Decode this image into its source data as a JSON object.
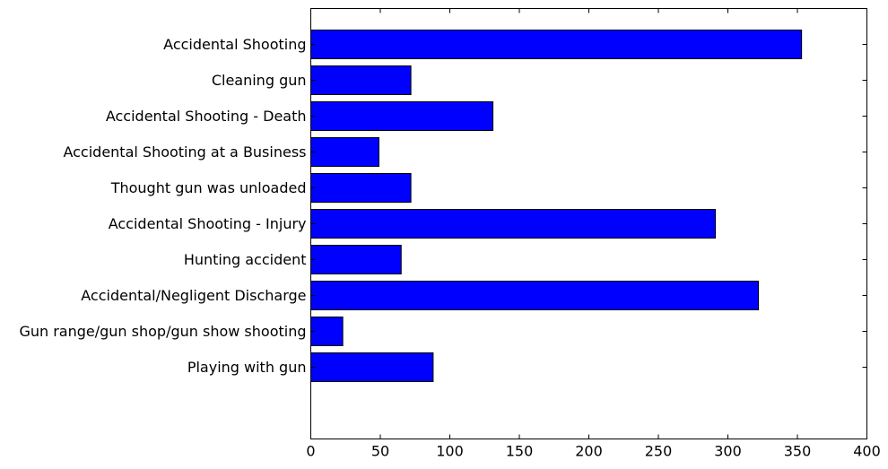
{
  "chart_data": {
    "type": "bar",
    "orientation": "horizontal",
    "categories": [
      "Accidental Shooting",
      "Cleaning gun",
      "Accidental Shooting - Death",
      "Accidental Shooting at a Business",
      "Thought gun was unloaded",
      "Accidental Shooting - Injury",
      "Hunting accident",
      "Accidental/Negligent Discharge",
      "Gun range/gun shop/gun show shooting",
      "Playing with gun"
    ],
    "values": [
      353,
      72,
      131,
      49,
      72,
      291,
      65,
      322,
      23,
      88
    ],
    "xlim": [
      0,
      400
    ],
    "xticks": [
      "0",
      "50",
      "100",
      "150",
      "200",
      "250",
      "300",
      "350",
      "400"
    ],
    "bar_color": "#0000ff",
    "grid": false
  }
}
